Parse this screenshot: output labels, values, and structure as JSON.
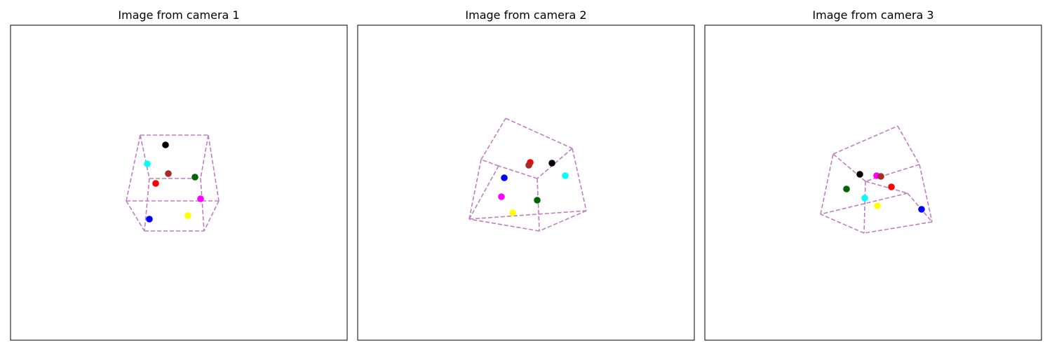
{
  "chart_data": [
    {
      "type": "scatter",
      "title": "Image from camera 1",
      "xlim": [
        0,
        480
      ],
      "ylim": [
        0,
        450
      ],
      "grid": false,
      "edge_color": "#bf7fbf",
      "points": [
        {
          "color": "#000000",
          "x": 221,
          "y": 171
        },
        {
          "color": "#00ffff",
          "x": 195,
          "y": 198
        },
        {
          "color": "#a52a2a",
          "x": 225,
          "y": 212
        },
        {
          "color": "#006400",
          "x": 263,
          "y": 217
        },
        {
          "color": "#ff0000",
          "x": 207,
          "y": 226
        },
        {
          "color": "#ff00ff",
          "x": 271,
          "y": 248
        },
        {
          "color": "#0000ff",
          "x": 198,
          "y": 277
        },
        {
          "color": "#ffff00",
          "x": 253,
          "y": 272
        }
      ],
      "vertices": [
        [
          185,
          157
        ],
        [
          282,
          157
        ],
        [
          297,
          251
        ],
        [
          165,
          251
        ],
        [
          198,
          219
        ],
        [
          271,
          219
        ],
        [
          191,
          294
        ],
        [
          276,
          294
        ]
      ],
      "edges": [
        [
          0,
          1
        ],
        [
          1,
          2
        ],
        [
          2,
          3
        ],
        [
          3,
          0
        ],
        [
          4,
          5
        ],
        [
          6,
          7
        ],
        [
          0,
          4
        ],
        [
          1,
          5
        ],
        [
          2,
          7
        ],
        [
          3,
          6
        ],
        [
          4,
          6
        ],
        [
          5,
          7
        ]
      ]
    },
    {
      "type": "scatter",
      "title": "Image from camera 2",
      "xlim": [
        0,
        480
      ],
      "ylim": [
        0,
        450
      ],
      "grid": false,
      "edge_color": "#bf7fbf",
      "points": [
        {
          "color": "#ff0000",
          "x": 246,
          "y": 196
        },
        {
          "color": "#a52a2a",
          "x": 244,
          "y": 200
        },
        {
          "color": "#000000",
          "x": 277,
          "y": 197
        },
        {
          "color": "#00ffff",
          "x": 296,
          "y": 215
        },
        {
          "color": "#0000ff",
          "x": 209,
          "y": 218
        },
        {
          "color": "#ff00ff",
          "x": 205,
          "y": 245
        },
        {
          "color": "#006400",
          "x": 256,
          "y": 250
        },
        {
          "color": "#ffff00",
          "x": 221,
          "y": 268
        }
      ],
      "vertices": [
        [
          211,
          133
        ],
        [
          306,
          176
        ],
        [
          256,
          219
        ],
        [
          176,
          192
        ],
        [
          326,
          265
        ],
        [
          259,
          294
        ],
        [
          159,
          277
        ],
        [
          201,
          201
        ]
      ],
      "edges": [
        [
          0,
          1
        ],
        [
          1,
          2
        ],
        [
          2,
          7
        ],
        [
          7,
          3
        ],
        [
          3,
          0
        ],
        [
          1,
          4
        ],
        [
          4,
          5
        ],
        [
          5,
          6
        ],
        [
          6,
          3
        ],
        [
          2,
          5
        ],
        [
          7,
          6
        ],
        [
          6,
          4
        ]
      ]
    },
    {
      "type": "scatter",
      "title": "Image from camera 3",
      "xlim": [
        0,
        480
      ],
      "ylim": [
        0,
        450
      ],
      "grid": false,
      "edge_color": "#bf7fbf",
      "points": [
        {
          "color": "#000000",
          "x": 221,
          "y": 213
        },
        {
          "color": "#ff00ff",
          "x": 245,
          "y": 215
        },
        {
          "color": "#a52a2a",
          "x": 251,
          "y": 216
        },
        {
          "color": "#006400",
          "x": 202,
          "y": 234
        },
        {
          "color": "#ff0000",
          "x": 266,
          "y": 231
        },
        {
          "color": "#00ffff",
          "x": 228,
          "y": 247
        },
        {
          "color": "#ffff00",
          "x": 246,
          "y": 258
        },
        {
          "color": "#0000ff",
          "x": 309,
          "y": 263
        }
      ],
      "vertices": [
        [
          275,
          144
        ],
        [
          306,
          199
        ],
        [
          229,
          223
        ],
        [
          183,
          184
        ],
        [
          289,
          240
        ],
        [
          324,
          281
        ],
        [
          165,
          270
        ],
        [
          227,
          297
        ]
      ],
      "edges": [
        [
          0,
          1
        ],
        [
          1,
          2
        ],
        [
          2,
          3
        ],
        [
          3,
          0
        ],
        [
          1,
          5
        ],
        [
          5,
          7
        ],
        [
          7,
          6
        ],
        [
          6,
          3
        ],
        [
          2,
          4
        ],
        [
          2,
          7
        ],
        [
          4,
          5
        ],
        [
          4,
          6
        ]
      ]
    }
  ]
}
